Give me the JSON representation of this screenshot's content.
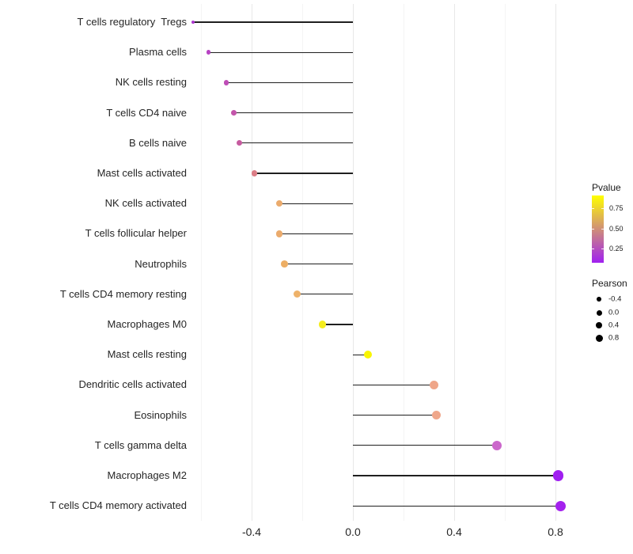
{
  "chart_data": {
    "type": "scatter",
    "variant": "lollipop",
    "title": "",
    "xlabel": "",
    "ylabel": "",
    "xlim": [
      -0.64,
      0.92
    ],
    "x_ticks": [
      -0.4,
      0.0,
      0.4,
      0.8
    ],
    "x_tick_labels": [
      "-0.4",
      "0.0",
      "0.4",
      "0.8"
    ],
    "x_minor_ticks": [
      -0.6,
      -0.2,
      0.2,
      0.6
    ],
    "grid": "vertical-only",
    "baseline_x": 0.0,
    "legend_position": "right",
    "categories": [
      "T cells regulatory  Tregs",
      "Plasma cells",
      "NK cells resting",
      "T cells CD4 naive",
      "B cells naive",
      "Mast cells activated",
      "NK cells activated",
      "T cells follicular helper",
      "Neutrophils",
      "T cells CD4 memory resting",
      "Macrophages M0",
      "Mast cells resting",
      "Dendritic cells activated",
      "Eosinophils",
      "T cells gamma delta",
      "Macrophages M2",
      "T cells CD4 memory activated"
    ],
    "series": [
      {
        "name": "Pearson",
        "values": [
          -0.63,
          -0.57,
          -0.5,
          -0.47,
          -0.45,
          -0.39,
          -0.29,
          -0.29,
          -0.27,
          -0.22,
          -0.12,
          0.06,
          0.32,
          0.33,
          0.57,
          0.81,
          0.82
        ]
      }
    ],
    "point_colors": [
      "#AB36CD",
      "#B742C3",
      "#BE4DB6",
      "#C355AA",
      "#C65B9F",
      "#DB7D86",
      "#EBAB6D",
      "#EBAB6D",
      "#EDAE64",
      "#EEB26A",
      "#F5ED1E",
      "#F9F500",
      "#EFA689",
      "#EFA78B",
      "#CB67CB",
      "#A01FF0",
      "#A421EE"
    ],
    "point_radii": [
      2.0,
      2.8,
      3.3,
      3.4,
      3.5,
      3.7,
      4.2,
      4.2,
      4.3,
      4.5,
      4.8,
      5.0,
      5.7,
      5.7,
      6.0,
      6.7,
      6.7
    ]
  },
  "legend_pvalue": {
    "title": "Pvalue",
    "tick_labels": [
      "0.75",
      "0.50",
      "0.25"
    ],
    "gradient_stops_top_to_bottom": [
      "#FFFF00",
      "#E7C73C",
      "#CF8F78",
      "#B858B4",
      "#A020F0"
    ]
  },
  "legend_pearson": {
    "title": "Pearson",
    "dot_color": "#000000",
    "items": [
      {
        "label": "-0.4",
        "diameter": 5.7
      },
      {
        "label": "0.0",
        "diameter": 7.0
      },
      {
        "label": "0.4",
        "diameter": 8.0
      },
      {
        "label": "0.8",
        "diameter": 9.0
      }
    ]
  },
  "colors": {
    "background": "#ffffff",
    "stem": "#1f1f1f",
    "grid_major": "#e8e8e8",
    "grid_minor": "#f4f4f4",
    "axis_text": "#262626"
  }
}
